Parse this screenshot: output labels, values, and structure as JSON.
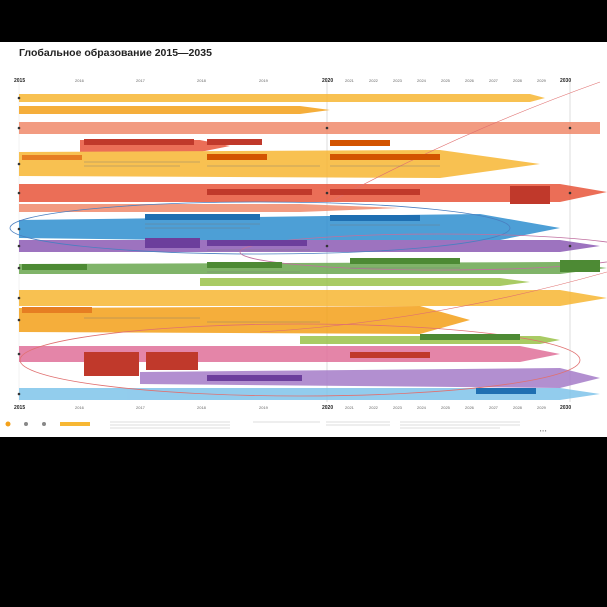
{
  "poster": {
    "title": "Глобальное образование 2015—2035",
    "years_top": [
      "2015",
      "2016",
      "2017",
      "2018",
      "2019",
      "2020",
      "2021",
      "2022",
      "2023",
      "2024",
      "2025",
      "2026",
      "2027",
      "2028",
      "2029",
      "2030"
    ],
    "years_bottom": [
      "2015",
      "2016",
      "2017",
      "2018",
      "2019",
      "2020",
      "2021",
      "2022",
      "2023",
      "2024",
      "2025",
      "2026",
      "2027",
      "2028",
      "2029",
      "2030"
    ],
    "major_years": [
      "2015",
      "2020",
      "2030"
    ]
  },
  "colors": {
    "orange": "#f4a11a",
    "amber": "#f7b733",
    "red": "#e8553a",
    "salmon": "#f08a6c",
    "blue": "#2f8fd0",
    "purple": "#8d5bb5",
    "green": "#6aa84f",
    "lime": "#9bc34a",
    "pink": "#e0709a",
    "violet": "#a57cc8",
    "lightblue": "#7fc4ea"
  },
  "icons": [
    "circle-marker-icon"
  ]
}
